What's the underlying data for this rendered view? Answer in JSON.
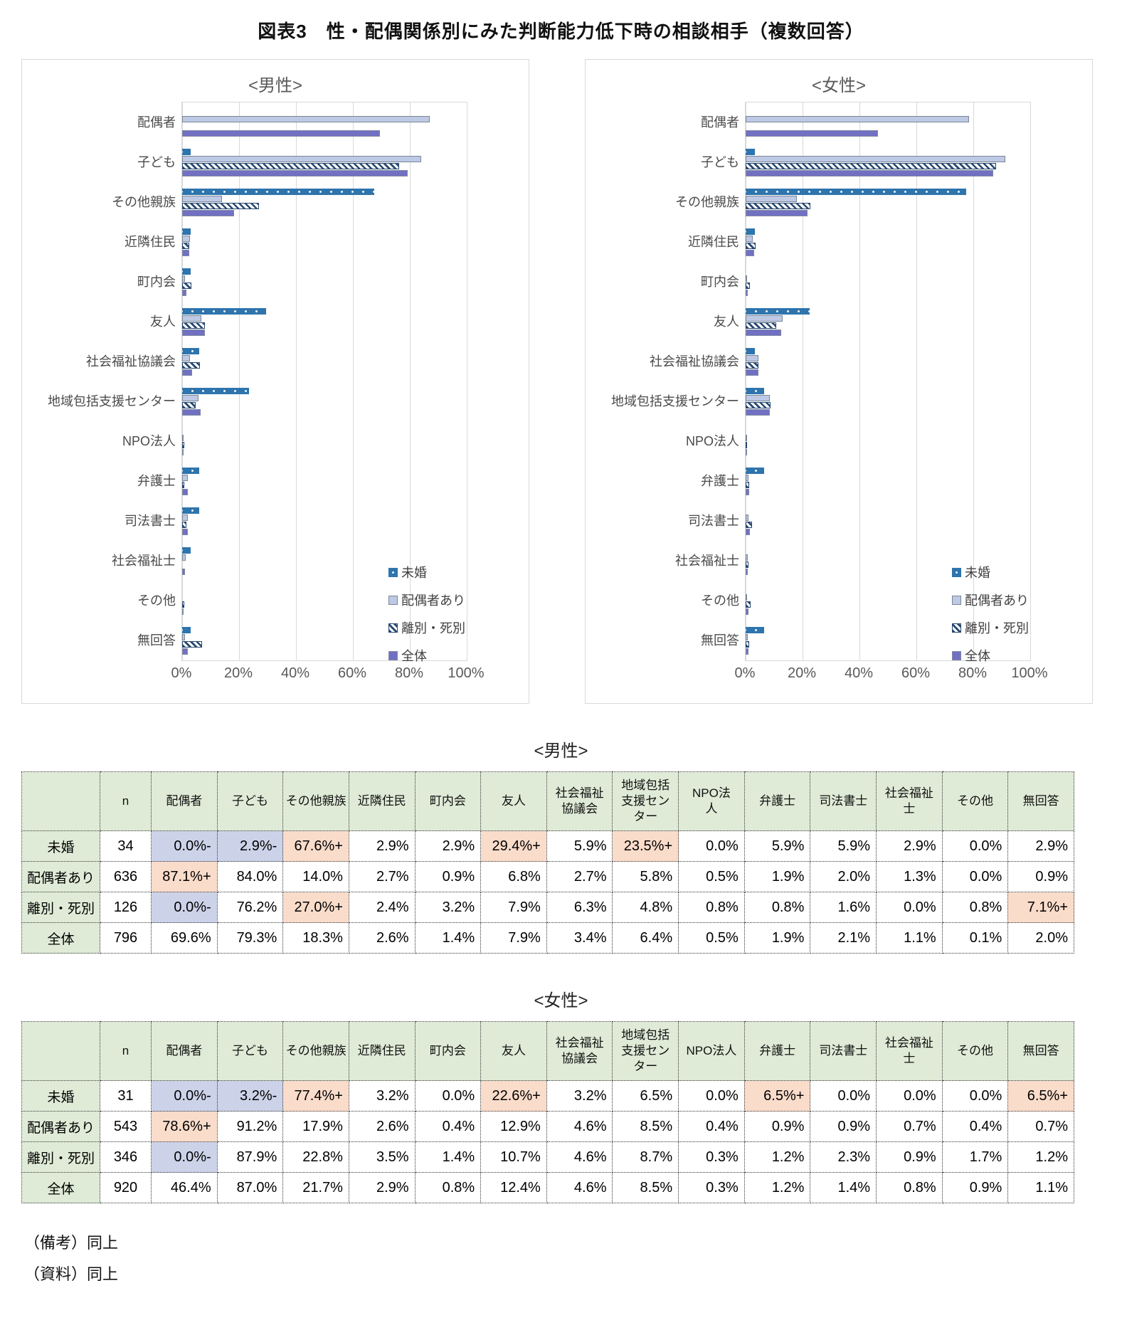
{
  "page": {
    "title": "図表3　性・配偶関係別にみた判断能力低下時の相談相手（複数回答）",
    "footnotes": [
      "（備考）同上",
      "（資料）同上"
    ]
  },
  "colors": {
    "series_mikon": "#2E74AD",
    "series_haigusha_ari": "#BDC9E5",
    "series_ribetsu_shibetsu": "#26476F",
    "series_zentai": "#7170C3",
    "highlight_plus": "#FADCCB",
    "highlight_minus": "#CCD3E9",
    "table_header_green": "#DFEBD7",
    "gridline": "#D9D9D9"
  },
  "chart_data": [
    {
      "type": "bar",
      "orientation": "horizontal",
      "title": "<男性>",
      "xlim": [
        0,
        100
      ],
      "x_ticks": [
        "0%",
        "20%",
        "40%",
        "60%",
        "80%",
        "100%"
      ],
      "grid": true,
      "legend_position": "inside-bottom-right",
      "categories": [
        "配偶者",
        "子ども",
        "その他親族",
        "近隣住民",
        "町内会",
        "友人",
        "社会福祉協議会",
        "地域包括支援センター",
        "NPO法人",
        "弁護士",
        "司法書士",
        "社会福祉士",
        "その他",
        "無回答"
      ],
      "series": [
        {
          "name": "未婚",
          "values": [
            0.0,
            2.9,
            67.6,
            2.9,
            2.9,
            29.4,
            5.9,
            23.5,
            0.0,
            5.9,
            5.9,
            2.9,
            0.0,
            2.9
          ]
        },
        {
          "name": "配偶者あり",
          "values": [
            87.1,
            84.0,
            14.0,
            2.7,
            0.9,
            6.8,
            2.7,
            5.8,
            0.5,
            1.9,
            2.0,
            1.3,
            0.0,
            0.9
          ]
        },
        {
          "name": "離別・死別",
          "values": [
            0.0,
            76.2,
            27.0,
            2.4,
            3.2,
            7.9,
            6.3,
            4.8,
            0.8,
            0.8,
            1.6,
            0.0,
            0.8,
            7.1
          ]
        },
        {
          "name": "全体",
          "values": [
            69.6,
            79.3,
            18.3,
            2.6,
            1.4,
            7.9,
            3.4,
            6.4,
            0.5,
            1.9,
            2.1,
            1.1,
            0.1,
            2.0
          ]
        }
      ]
    },
    {
      "type": "bar",
      "orientation": "horizontal",
      "title": "<女性>",
      "xlim": [
        0,
        100
      ],
      "x_ticks": [
        "0%",
        "20%",
        "40%",
        "60%",
        "80%",
        "100%"
      ],
      "grid": true,
      "legend_position": "inside-bottom-right",
      "categories": [
        "配偶者",
        "子ども",
        "その他親族",
        "近隣住民",
        "町内会",
        "友人",
        "社会福祉協議会",
        "地域包括支援センター",
        "NPO法人",
        "弁護士",
        "司法書士",
        "社会福祉士",
        "その他",
        "無回答"
      ],
      "series": [
        {
          "name": "未婚",
          "values": [
            0.0,
            3.2,
            77.4,
            3.2,
            0.0,
            22.6,
            3.2,
            6.5,
            0.0,
            6.5,
            0.0,
            0.0,
            0.0,
            6.5
          ]
        },
        {
          "name": "配偶者あり",
          "values": [
            78.6,
            91.2,
            17.9,
            2.6,
            0.4,
            12.9,
            4.6,
            8.5,
            0.4,
            0.9,
            0.9,
            0.7,
            0.4,
            0.7
          ]
        },
        {
          "name": "離別・死別",
          "values": [
            0.0,
            87.9,
            22.8,
            3.5,
            1.4,
            10.7,
            4.6,
            8.7,
            0.3,
            1.2,
            2.3,
            0.9,
            1.7,
            1.2
          ]
        },
        {
          "name": "全体",
          "values": [
            46.4,
            87.0,
            21.7,
            2.9,
            0.8,
            12.4,
            4.6,
            8.5,
            0.3,
            1.2,
            1.4,
            0.8,
            0.9,
            1.1
          ]
        }
      ]
    }
  ],
  "tables": [
    {
      "title": "<男性>",
      "col_headers": [
        "",
        "n",
        "配偶者",
        "子ども",
        "その他親族",
        "近隣住民",
        "町内会",
        "友人",
        "社会福祉\n協議会",
        "地域包括\n支援セン\nター",
        "NPO法\n人",
        "弁護士",
        "司法書士",
        "社会福祉\n士",
        "その他",
        "無回答"
      ],
      "rows": [
        {
          "label": "未婚",
          "n": "34",
          "values": [
            "0.0%-",
            "2.9%-",
            "67.6%+",
            "2.9%",
            "2.9%",
            "29.4%+",
            "5.9%",
            "23.5%+",
            "0.0%",
            "5.9%",
            "5.9%",
            "2.9%",
            "0.0%",
            "2.9%"
          ]
        },
        {
          "label": "配偶者あり",
          "n": "636",
          "values": [
            "87.1%+",
            "84.0%",
            "14.0%",
            "2.7%",
            "0.9%",
            "6.8%",
            "2.7%",
            "5.8%",
            "0.5%",
            "1.9%",
            "2.0%",
            "1.3%",
            "0.0%",
            "0.9%"
          ]
        },
        {
          "label": "離別・死別",
          "n": "126",
          "values": [
            "0.0%-",
            "76.2%",
            "27.0%+",
            "2.4%",
            "3.2%",
            "7.9%",
            "6.3%",
            "4.8%",
            "0.8%",
            "0.8%",
            "1.6%",
            "0.0%",
            "0.8%",
            "7.1%+"
          ]
        },
        {
          "label": "全体",
          "n": "796",
          "values": [
            "69.6%",
            "79.3%",
            "18.3%",
            "2.6%",
            "1.4%",
            "7.9%",
            "3.4%",
            "6.4%",
            "0.5%",
            "1.9%",
            "2.1%",
            "1.1%",
            "0.1%",
            "2.0%"
          ]
        }
      ]
    },
    {
      "title": "<女性>",
      "col_headers": [
        "",
        "n",
        "配偶者",
        "子ども",
        "その他親族",
        "近隣住民",
        "町内会",
        "友人",
        "社会福祉\n協議会",
        "地域包括\n支援セン\nター",
        "NPO法人",
        "弁護士",
        "司法書士",
        "社会福祉\n士",
        "その他",
        "無回答"
      ],
      "rows": [
        {
          "label": "未婚",
          "n": "31",
          "values": [
            "0.0%-",
            "3.2%-",
            "77.4%+",
            "3.2%",
            "0.0%",
            "22.6%+",
            "3.2%",
            "6.5%",
            "0.0%",
            "6.5%+",
            "0.0%",
            "0.0%",
            "0.0%",
            "6.5%+"
          ]
        },
        {
          "label": "配偶者あり",
          "n": "543",
          "values": [
            "78.6%+",
            "91.2%",
            "17.9%",
            "2.6%",
            "0.4%",
            "12.9%",
            "4.6%",
            "8.5%",
            "0.4%",
            "0.9%",
            "0.9%",
            "0.7%",
            "0.4%",
            "0.7%"
          ]
        },
        {
          "label": "離別・死別",
          "n": "346",
          "values": [
            "0.0%-",
            "87.9%",
            "22.8%",
            "3.5%",
            "1.4%",
            "10.7%",
            "4.6%",
            "8.7%",
            "0.3%",
            "1.2%",
            "2.3%",
            "0.9%",
            "1.7%",
            "1.2%"
          ]
        },
        {
          "label": "全体",
          "n": "920",
          "values": [
            "46.4%",
            "87.0%",
            "21.7%",
            "2.9%",
            "0.8%",
            "12.4%",
            "4.6%",
            "8.5%",
            "0.3%",
            "1.2%",
            "1.4%",
            "0.8%",
            "0.9%",
            "1.1%"
          ]
        }
      ]
    }
  ]
}
